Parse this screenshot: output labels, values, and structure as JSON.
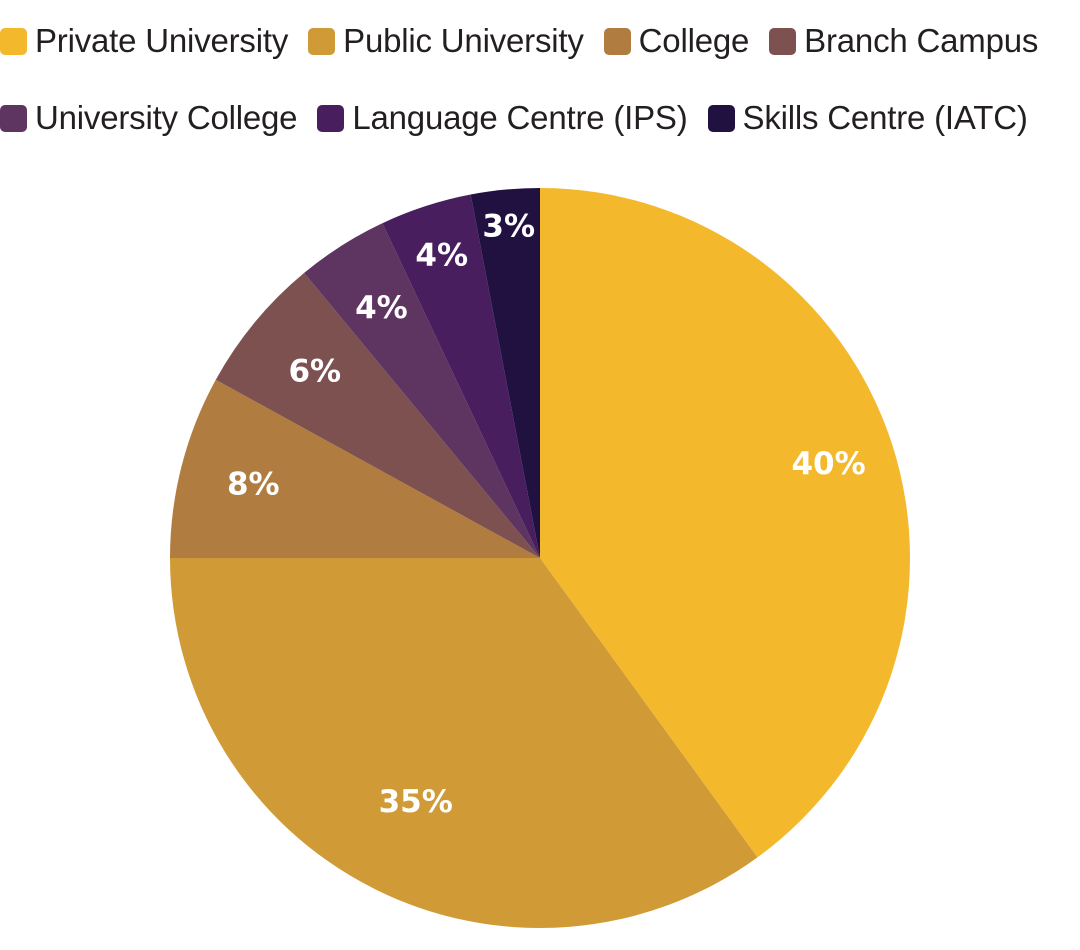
{
  "chart_data": {
    "type": "pie",
    "title": "",
    "legend_position": "top",
    "categories": [
      "Private University",
      "Public University",
      "College",
      "Branch Campus",
      "University College",
      "Language Centre (IPS)",
      "Skills Centre (IATC)"
    ],
    "values": [
      40,
      35,
      8,
      6,
      4,
      4,
      3
    ],
    "data_labels": [
      "40%",
      "35%",
      "8%",
      "6%",
      "4%",
      "4%",
      "3%"
    ],
    "colors": [
      "#f3b82b",
      "#d09b37",
      "#b07c3f",
      "#7e5151",
      "#5e3460",
      "#481e5e",
      "#211141"
    ]
  },
  "legend": {
    "items": [
      {
        "label": "Private University",
        "color": "#f3b82b"
      },
      {
        "label": "Public University",
        "color": "#d09b37"
      },
      {
        "label": "College",
        "color": "#b07c3f"
      },
      {
        "label": "Branch Campus",
        "color": "#7e5151"
      },
      {
        "label": "University College",
        "color": "#5e3460"
      },
      {
        "label": "Language Centre (IPS)",
        "color": "#481e5e"
      },
      {
        "label": "Skills Centre (IATC)",
        "color": "#211141"
      }
    ]
  }
}
